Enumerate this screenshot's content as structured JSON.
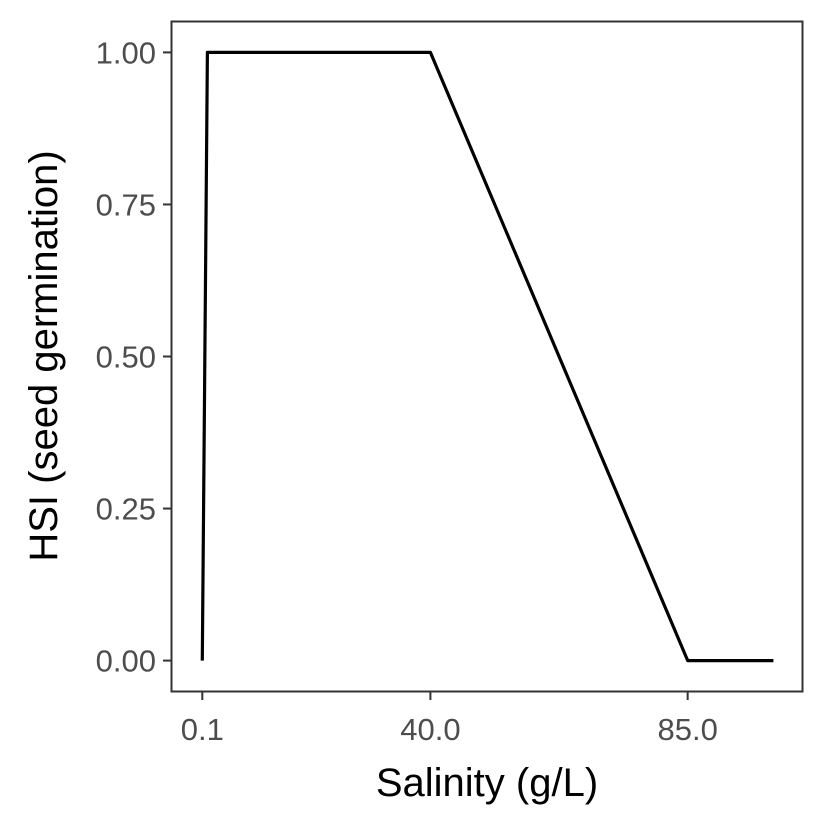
{
  "chart_data": {
    "type": "line",
    "title": "",
    "xlabel": "Salinity (g/L)",
    "ylabel": "HSI (seed germination)",
    "xlim": [
      -5.2,
      105
    ],
    "ylim": [
      -0.05,
      1.05
    ],
    "x_ticks": [
      {
        "value": 0.1,
        "label": "0.1"
      },
      {
        "value": 40.0,
        "label": "40.0"
      },
      {
        "value": 85.0,
        "label": "85.0"
      }
    ],
    "y_ticks": [
      {
        "value": 0.0,
        "label": "0.00"
      },
      {
        "value": 0.25,
        "label": "0.25"
      },
      {
        "value": 0.5,
        "label": "0.50"
      },
      {
        "value": 0.75,
        "label": "0.75"
      },
      {
        "value": 1.0,
        "label": "1.00"
      }
    ],
    "grid": false,
    "series": [
      {
        "x": [
          0.1,
          1.0,
          40.0,
          85.0,
          100.0
        ],
        "y": [
          0.0,
          1.0,
          1.0,
          0.0,
          0.0
        ],
        "color": "#000000"
      }
    ]
  }
}
